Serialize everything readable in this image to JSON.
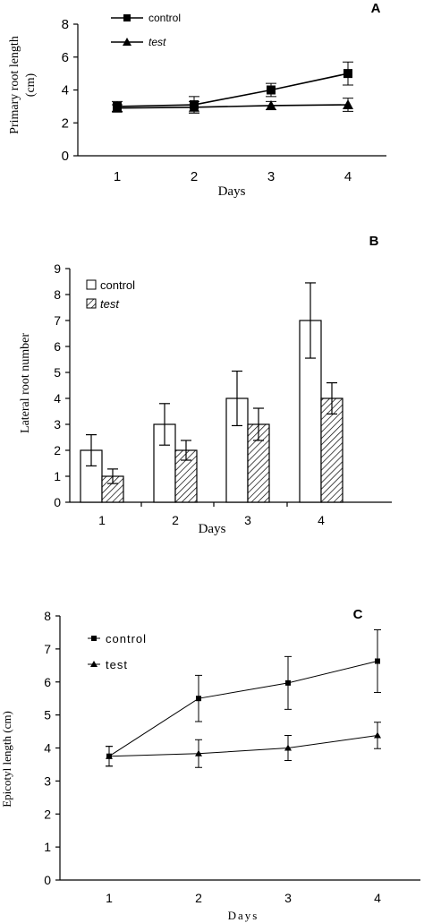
{
  "chart_data": [
    {
      "panel": "A",
      "type": "line",
      "xlabel": "Days",
      "ylabel": "Primary root length (cm)",
      "ylabel_lines": [
        "Primary root length",
        "(cm)"
      ],
      "x": [
        1,
        2,
        3,
        4
      ],
      "x_ticks": [
        "1",
        "2",
        "3",
        "4"
      ],
      "ylim": [
        0,
        8
      ],
      "y_ticks": [
        "0",
        "2",
        "4",
        "6",
        "8"
      ],
      "legend_position": "top-left",
      "series": [
        {
          "name": "control",
          "marker": "square",
          "values": [
            3.0,
            3.1,
            4.0,
            5.0
          ],
          "errors": [
            0.3,
            0.5,
            0.4,
            0.7
          ]
        },
        {
          "name": "test",
          "marker": "triangle",
          "values": [
            2.9,
            2.95,
            3.05,
            3.1
          ],
          "errors": [
            0.2,
            0.35,
            0.25,
            0.4
          ]
        }
      ]
    },
    {
      "panel": "B",
      "type": "bar",
      "xlabel": "Days",
      "ylabel": "Lateral root number",
      "categories": [
        "1",
        "2",
        "3",
        "4"
      ],
      "ylim": [
        0,
        9
      ],
      "y_ticks": [
        "0",
        "1",
        "2",
        "3",
        "4",
        "5",
        "6",
        "7",
        "8",
        "9"
      ],
      "legend_position": "top-left",
      "series": [
        {
          "name": "control",
          "fill": "white",
          "values": [
            2,
            3,
            4,
            7
          ],
          "errors": [
            0.6,
            0.8,
            1.05,
            1.45
          ]
        },
        {
          "name": "test",
          "fill": "hatched",
          "values": [
            1,
            2,
            3,
            4
          ],
          "errors": [
            0.28,
            0.38,
            0.62,
            0.6
          ]
        }
      ]
    },
    {
      "panel": "C",
      "type": "line",
      "xlabel": "Days",
      "ylabel": "Epicotyl length (cm)",
      "x": [
        1,
        2,
        3,
        4
      ],
      "x_ticks": [
        "1",
        "2",
        "3",
        "4"
      ],
      "ylim": [
        0,
        8
      ],
      "y_ticks": [
        "0",
        "1",
        "2",
        "3",
        "4",
        "5",
        "6",
        "7",
        "8"
      ],
      "legend_position": "top-left",
      "series": [
        {
          "name": "control",
          "marker": "square",
          "values": [
            3.75,
            5.5,
            5.97,
            6.63
          ],
          "errors": [
            0.3,
            0.7,
            0.8,
            0.95
          ]
        },
        {
          "name": "test",
          "marker": "triangle",
          "values": [
            3.75,
            3.83,
            4.0,
            4.38
          ],
          "errors": [
            0.3,
            0.42,
            0.38,
            0.4
          ]
        }
      ]
    }
  ]
}
